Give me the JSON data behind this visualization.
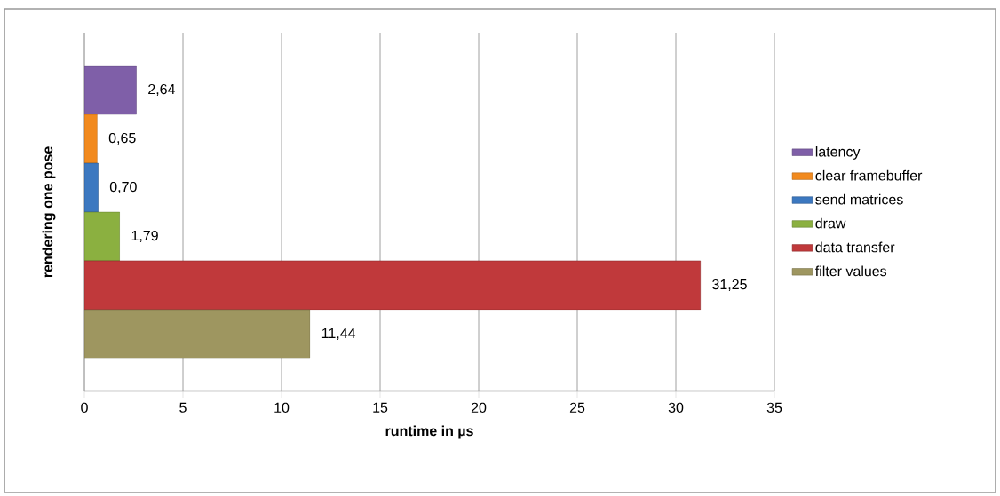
{
  "chart_data": {
    "type": "bar",
    "orientation": "horizontal",
    "categories": [
      null
    ],
    "xlabel": "runtime in µs",
    "ylabel": "rendering one pose",
    "xlim": [
      0,
      35
    ],
    "xticks": [
      0,
      5,
      10,
      15,
      20,
      25,
      30,
      35
    ],
    "grid": "x",
    "legend": "right",
    "series": [
      {
        "name": "latency",
        "color": "#7f5fa8",
        "values": [
          2.64
        ],
        "value_labels": [
          "2,64"
        ]
      },
      {
        "name": "clear framebuffer",
        "color": "#f28a1e",
        "values": [
          0.65
        ],
        "value_labels": [
          "0,65"
        ]
      },
      {
        "name": "send matrices",
        "color": "#3c78c0",
        "values": [
          0.7
        ],
        "value_labels": [
          "0,70"
        ]
      },
      {
        "name": "draw",
        "color": "#8bb040",
        "values": [
          1.79
        ],
        "value_labels": [
          "1,79"
        ]
      },
      {
        "name": "data transfer",
        "color": "#c0393b",
        "values": [
          31.25
        ],
        "value_labels": [
          "31,25"
        ]
      },
      {
        "name": "filter values",
        "color": "#9e9660",
        "values": [
          11.44
        ],
        "value_labels": [
          "11,44"
        ]
      }
    ]
  }
}
